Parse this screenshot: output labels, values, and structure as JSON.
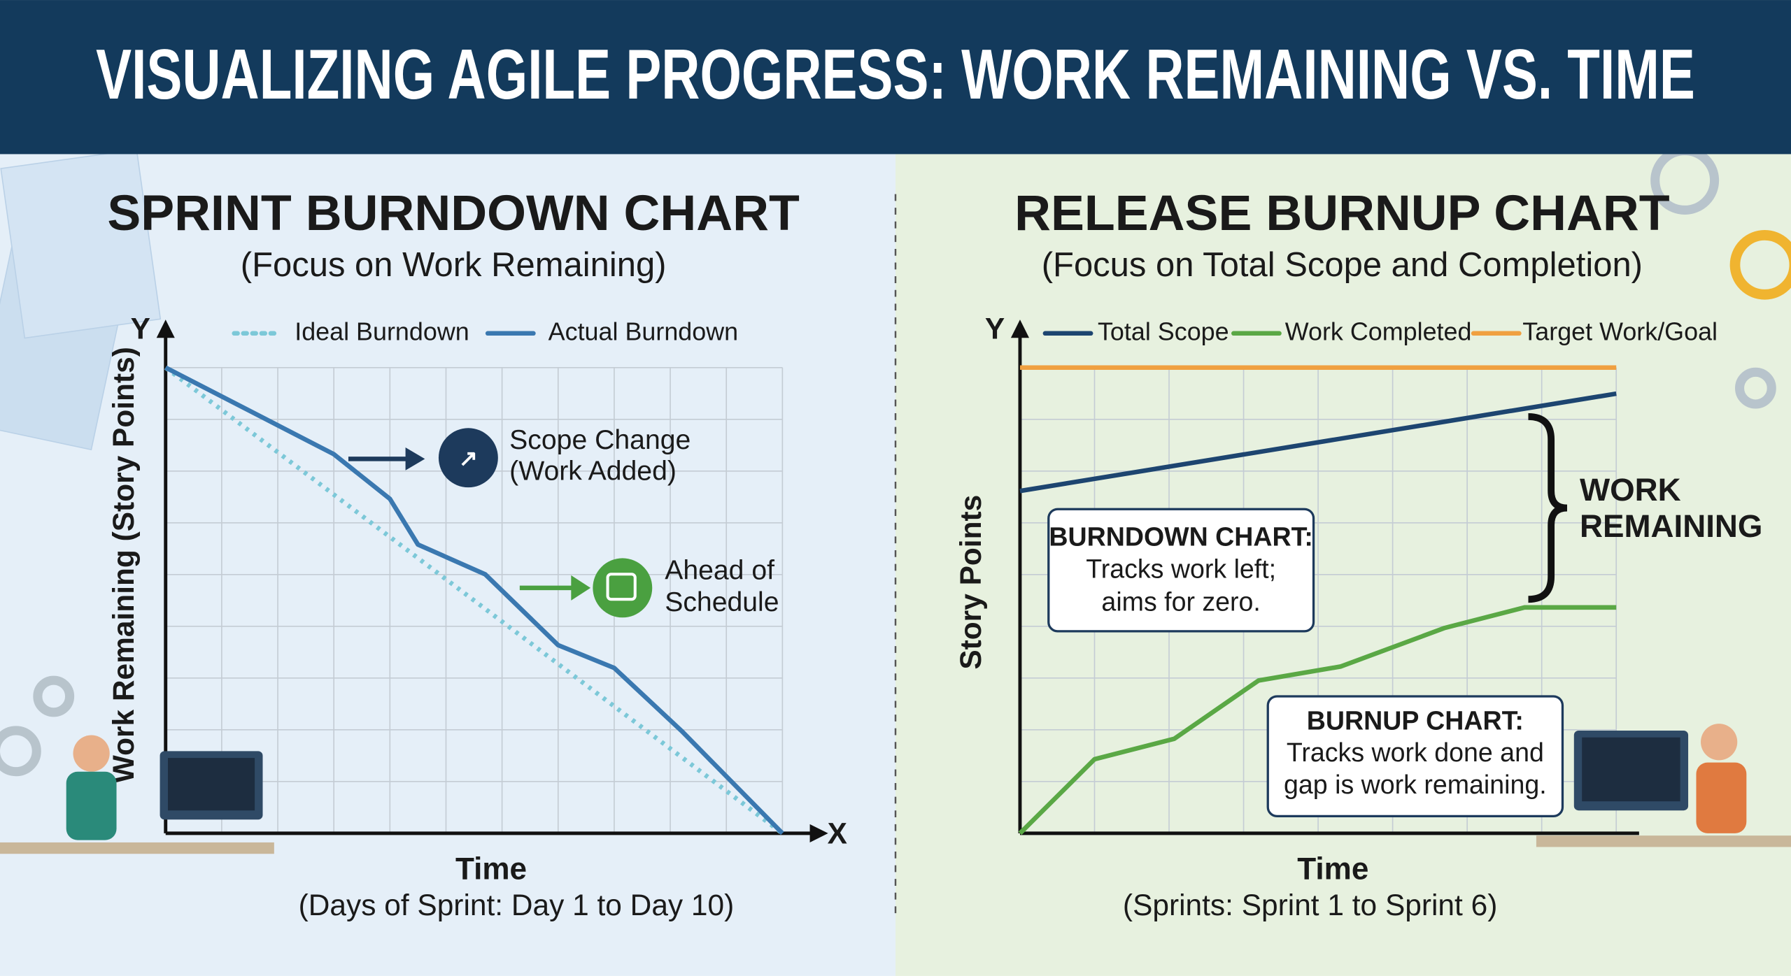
{
  "title": "VISUALIZING AGILE PROGRESS: WORK REMAINING VS. TIME",
  "chart_data": [
    {
      "type": "line",
      "title": "SPRINT BURNDOWN CHART",
      "subtitle": "(Focus on Work Remaining)",
      "y_axis_letter": "Y",
      "x_axis_letter": "X",
      "ylabel": "Work Remaining (Story Points)",
      "xlabel": "Time",
      "xlabel_note": "(Days of Sprint: Day 1 to Day 10)",
      "xlim": [
        0,
        11
      ],
      "ylim": [
        0,
        100
      ],
      "grid": true,
      "series": [
        {
          "name": "Ideal Burndown",
          "color": "#7cc8d8",
          "dashed": true,
          "x": [
            0,
            11
          ],
          "values": [
            100,
            0
          ]
        },
        {
          "name": "Actual Burndown",
          "color": "#3a78b0",
          "dashed": false,
          "x": [
            0,
            3,
            4,
            4.5,
            5.7,
            7,
            8,
            9.2,
            11
          ],
          "values": [
            100,
            81.4,
            71.8,
            62,
            55.6,
            40.4,
            35.5,
            22,
            0
          ]
        }
      ],
      "annotations": [
        {
          "lines": [
            "Scope Change",
            "(Work Added)"
          ]
        },
        {
          "lines": [
            "Ahead of",
            "Schedule"
          ]
        }
      ]
    },
    {
      "type": "line",
      "title": "RELEASE BURNUP CHART",
      "subtitle": "(Focus on Total Scope and Completion)",
      "y_axis_letter": "Y",
      "ylabel": "Story Points",
      "xlabel": "Time",
      "xlabel_note": "(Sprints: Sprint 1 to Sprint 6)",
      "xlim": [
        0,
        8
      ],
      "ylim": [
        0,
        100
      ],
      "grid": true,
      "series": [
        {
          "name": "Total Scope",
          "color": "#1d4570",
          "dashed": false,
          "x": [
            0,
            8
          ],
          "values": [
            73.5,
            94.4
          ]
        },
        {
          "name": "Work Completed",
          "color": "#5aa845",
          "dashed": false,
          "x": [
            0,
            1,
            2.07,
            3.2,
            4.3,
            5.7,
            6.77,
            8
          ],
          "values": [
            0,
            15.9,
            20.3,
            32.8,
            35.8,
            44.1,
            48.5,
            48.5
          ]
        },
        {
          "name": "Target Work/Goal",
          "color": "#f0a040",
          "dashed": false,
          "x": [
            0,
            8
          ],
          "values": [
            100,
            100
          ]
        }
      ],
      "annotations": [
        {
          "heading": "BURNDOWN CHART:",
          "lines": [
            "Tracks work left;",
            "aims for zero."
          ]
        },
        {
          "heading": "BURNUP CHART:",
          "lines": [
            "Tracks work done and",
            "gap is work remaining."
          ]
        },
        {
          "lines": [
            "WORK",
            "REMAINING"
          ]
        }
      ]
    }
  ]
}
